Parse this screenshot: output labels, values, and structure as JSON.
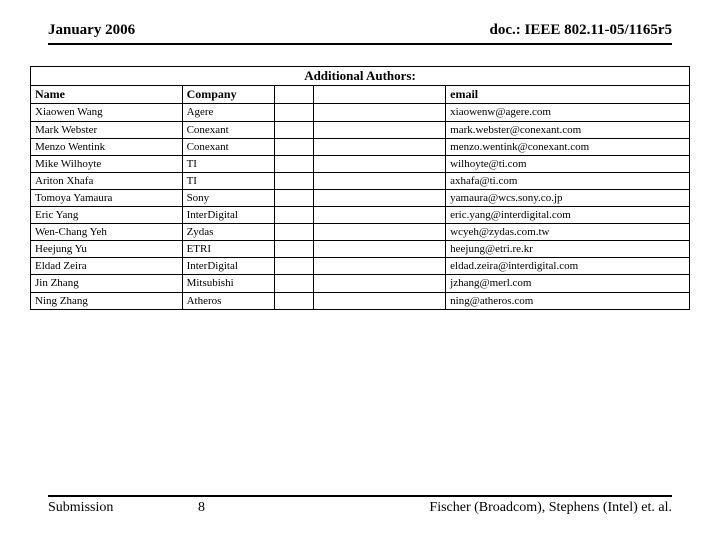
{
  "header": {
    "date": "January 2006",
    "docref": "doc.: IEEE 802.11-05/1165r5"
  },
  "table": {
    "title": "Additional Authors:",
    "columns": [
      "Name",
      "Company",
      "",
      "",
      "email"
    ],
    "rows": [
      [
        "Xiaowen Wang",
        "Agere",
        "",
        "",
        "xiaowenw@agere.com"
      ],
      [
        "Mark Webster",
        "Conexant",
        "",
        "",
        "mark.webster@conexant.com"
      ],
      [
        "Menzo Wentink",
        "Conexant",
        "",
        "",
        "menzo.wentink@conexant.com"
      ],
      [
        "Mike Wilhoyte",
        "TI",
        "",
        "",
        "wilhoyte@ti.com"
      ],
      [
        "Ariton Xhafa",
        "TI",
        "",
        "",
        "axhafa@ti.com"
      ],
      [
        "Tomoya Yamaura",
        "Sony",
        "",
        "",
        "yamaura@wcs.sony.co.jp"
      ],
      [
        "Eric Yang",
        "InterDigital",
        "",
        "",
        "eric.yang@interdigital.com"
      ],
      [
        "Wen-Chang Yeh",
        "Zydas",
        "",
        "",
        "wcyeh@zydas.com.tw"
      ],
      [
        "Heejung Yu",
        "ETRI",
        "",
        "",
        "heejung@etri.re.kr"
      ],
      [
        "Eldad Zeira",
        "InterDigital",
        "",
        "",
        "eldad.zeira@interdigital.com"
      ],
      [
        "Jin Zhang",
        "Mitsubishi",
        "",
        "",
        "jzhang@merl.com"
      ],
      [
        "Ning Zhang",
        "Atheros",
        "",
        "",
        "ning@atheros.com"
      ]
    ]
  },
  "footer": {
    "label": "Submission",
    "page": "8",
    "attribution": "Fischer (Broadcom), Stephens (Intel) et. al."
  },
  "style": {
    "background_color": "#ffffff",
    "border_color": "#000000",
    "text_color": "#000000",
    "font_family": "Times New Roman",
    "title_fontsize": 13,
    "header_fontsize": 15,
    "cell_fontsize": 11,
    "footer_fontsize": 14
  }
}
